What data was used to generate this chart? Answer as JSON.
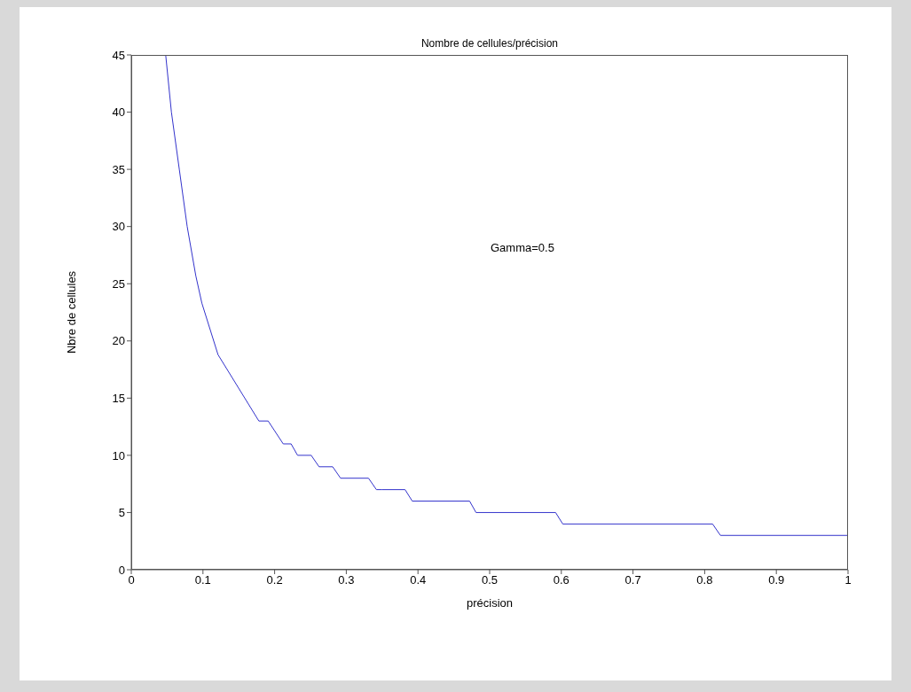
{
  "chart_data": {
    "type": "line",
    "title": "Nombre de cellules/précision",
    "xlabel": "précision",
    "ylabel": "Nbre de cellules",
    "annotations": [
      "Gamma=0.5"
    ],
    "x": [
      0.048,
      0.056,
      0.067,
      0.078,
      0.09,
      0.0985,
      0.121,
      0.178,
      0.191,
      0.212,
      0.223,
      0.232,
      0.251,
      0.262,
      0.281,
      0.292,
      0.331,
      0.342,
      0.35,
      0.382,
      0.392,
      0.472,
      0.481,
      0.592,
      0.602,
      0.811,
      0.822,
      1
    ],
    "series": [
      {
        "color": "#3333cc",
        "values": [
          45,
          40,
          35,
          30,
          25.7,
          23.3,
          18.8,
          13,
          13,
          11,
          11,
          10,
          10,
          9,
          9,
          8,
          8,
          7,
          7,
          7,
          6,
          6,
          5,
          5,
          4,
          4,
          3,
          3
        ]
      }
    ],
    "xlim": [
      0,
      1
    ],
    "xticks": [
      0,
      0.1,
      0.2,
      0.3,
      0.4,
      0.5,
      0.6,
      0.7,
      0.8,
      0.9,
      1
    ],
    "ylim": [
      0,
      45
    ],
    "yticks": [
      0,
      5,
      10,
      15,
      20,
      25,
      30,
      35,
      40,
      45
    ],
    "marker": "none",
    "line_style": "solid"
  }
}
